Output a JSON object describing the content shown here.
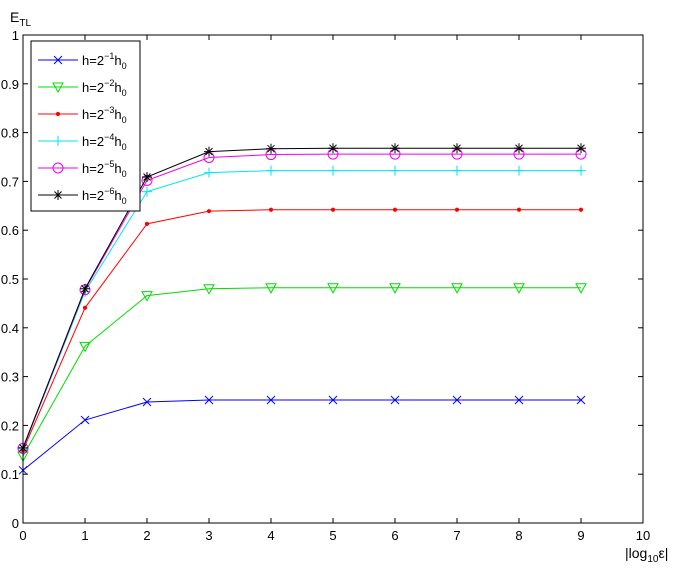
{
  "chart_data": {
    "type": "line",
    "ylabel_main": "E",
    "ylabel_sub": "TL",
    "xlabel_pre": "|log",
    "xlabel_sub": "10",
    "xlabel_post": "ε|",
    "xlim": [
      0,
      10
    ],
    "ylim": [
      0,
      1
    ],
    "xticks": [
      "0",
      "1",
      "2",
      "3",
      "4",
      "5",
      "6",
      "7",
      "8",
      "9",
      "10"
    ],
    "yticks": [
      "0",
      "0.1",
      "0.2",
      "0.3",
      "0.4",
      "0.5",
      "0.6",
      "0.7",
      "0.8",
      "0.9",
      "1"
    ],
    "legend_position": "top-left",
    "x": [
      0,
      1,
      2,
      3,
      4,
      5,
      6,
      7,
      8,
      9
    ],
    "series": [
      {
        "name_base": "h=2",
        "name_exp": "−1",
        "name_mid": "h",
        "name_sub": "0",
        "color": "#0000ff",
        "marker": "x",
        "values": [
          0.108,
          0.211,
          0.248,
          0.252,
          0.252,
          0.252,
          0.252,
          0.252,
          0.252,
          0.252
        ]
      },
      {
        "name_base": "h=2",
        "name_exp": "−2",
        "name_mid": "h",
        "name_sub": "0",
        "color": "#00dd00",
        "marker": "triangle-down",
        "values": [
          0.137,
          0.362,
          0.466,
          0.48,
          0.482,
          0.482,
          0.482,
          0.482,
          0.482,
          0.482
        ]
      },
      {
        "name_base": "h=2",
        "name_exp": "−3",
        "name_mid": "h",
        "name_sub": "0",
        "color": "#ff0000",
        "marker": "dot",
        "values": [
          0.149,
          0.441,
          0.613,
          0.639,
          0.642,
          0.642,
          0.642,
          0.642,
          0.642,
          0.642
        ]
      },
      {
        "name_base": "h=2",
        "name_exp": "−4",
        "name_mid": "h",
        "name_sub": "0",
        "color": "#00e5ee",
        "marker": "plus",
        "values": [
          0.152,
          0.474,
          0.679,
          0.718,
          0.722,
          0.722,
          0.722,
          0.722,
          0.722,
          0.722
        ]
      },
      {
        "name_base": "h=2",
        "name_exp": "−5",
        "name_mid": "h",
        "name_sub": "0",
        "color": "#ee00ee",
        "marker": "circle",
        "values": [
          0.153,
          0.478,
          0.702,
          0.749,
          0.755,
          0.756,
          0.756,
          0.756,
          0.756,
          0.756
        ]
      },
      {
        "name_base": "h=2",
        "name_exp": "−6",
        "name_mid": "h",
        "name_sub": "0",
        "color": "#000000",
        "marker": "star",
        "values": [
          0.154,
          0.48,
          0.709,
          0.761,
          0.767,
          0.768,
          0.768,
          0.768,
          0.768,
          0.768
        ]
      }
    ]
  }
}
